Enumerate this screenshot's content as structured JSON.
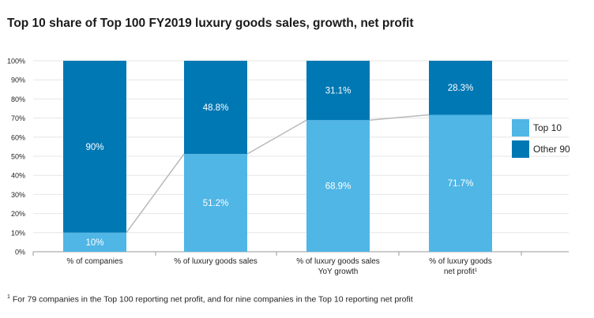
{
  "title": "Top 10 share of Top 100 FY2019 luxury goods sales, growth, net profit",
  "footnote": {
    "marker": "1",
    "text": " For 79 companies in the Top 100 reporting net profit, and for nine companies in the Top 10 reporting net profit"
  },
  "colors": {
    "top10": "#4fb6e6",
    "other90": "#0078b4",
    "connector": "#b8b8b8",
    "grid": "#e6e6e6",
    "axis": "#999999",
    "text": "#222222",
    "label_light": "#ffffff"
  },
  "chart_data": {
    "type": "bar",
    "stacked": true,
    "title": "Top 10 share of Top 100 FY2019 luxury goods sales, growth, net profit",
    "categories": [
      "% of companies",
      "% of luxury goods sales",
      "% of luxury goods sales YoY growth",
      "% of luxury goods net profit"
    ],
    "category_lines": [
      [
        "% of companies"
      ],
      [
        "% of luxury goods sales"
      ],
      [
        "% of luxury goods sales",
        "YoY growth"
      ],
      [
        "% of luxury goods",
        "net profit"
      ]
    ],
    "category_superscripts": [
      "",
      "",
      "",
      "1"
    ],
    "series": [
      {
        "name": "Top 10",
        "values": [
          10,
          51.2,
          68.9,
          71.7
        ],
        "labels": [
          "10%",
          "51.2%",
          "68.9%",
          "71.7%"
        ]
      },
      {
        "name": "Other 90",
        "values": [
          90,
          48.8,
          31.1,
          28.3
        ],
        "labels": [
          "90%",
          "48.8%",
          "31.1%",
          "28.3%"
        ]
      }
    ],
    "ylim": [
      0,
      100
    ],
    "yticks": [
      0,
      10,
      20,
      30,
      40,
      50,
      60,
      70,
      80,
      90,
      100
    ],
    "ytick_labels": [
      "0%",
      "10%",
      "20%",
      "30%",
      "40%",
      "50%",
      "60%",
      "70%",
      "80%",
      "90%",
      "100%"
    ],
    "connector_line": true,
    "legend": [
      "Top 10",
      "Other 90"
    ],
    "legend_position": "right",
    "grid": true
  }
}
